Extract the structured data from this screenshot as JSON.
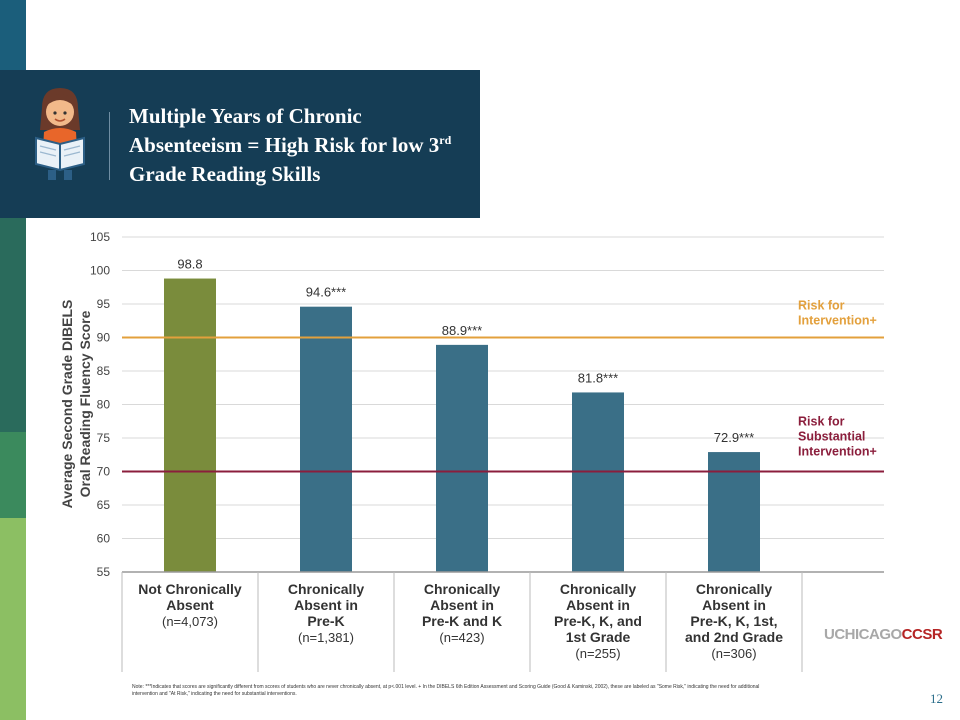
{
  "slide": {
    "title_main": "Multiple Years of Chronic Absenteeism = High Risk for low 3",
    "title_sup": "rd",
    "title_end": " Grade Reading Skills",
    "note": "Note: ***Indicates that scores are significantly different from scores of students who are never chronically absent, at p<.001 level. + In the DIBELS 6th Edition Assessment and Scoring Guide (Good & Kaminski, 2002), these are labeled as \"Some Risk,\" indicating the need for additional intervention and \"At Risk,\" indicating the need for substantial interventions.",
    "page_number": "12",
    "logo_part1": "UCHICAGO",
    "logo_part2": "CCSR"
  },
  "colors": {
    "stripes": [
      "#1b5e7b",
      "#1f5c6e",
      "#2a6b5c",
      "#3b8a5d",
      "#8cbf63"
    ],
    "title_band": "#153d55",
    "bar_first": "#7a8c3c",
    "bar_other": "#3a6f87",
    "line_intervention": "#e3a03c",
    "line_substantial": "#8b1e3c"
  },
  "chart_data": {
    "type": "bar",
    "ylabel": "Average Second Grade DIBELS Oral Reading Fluency Score",
    "ylim": [
      55,
      105
    ],
    "yticks": [
      55,
      60,
      65,
      70,
      75,
      80,
      85,
      90,
      95,
      100,
      105
    ],
    "grid": true,
    "categories": [
      {
        "lines": [
          "Not Chronically",
          "Absent"
        ],
        "n": "(n=4,073)"
      },
      {
        "lines": [
          "Chronically",
          "Absent in",
          "Pre-K"
        ],
        "n": "(n=1,381)"
      },
      {
        "lines": [
          "Chronically",
          "Absent in",
          "Pre-K and K"
        ],
        "n": "(n=423)"
      },
      {
        "lines": [
          "Chronically",
          "Absent in",
          "Pre-K, K, and",
          "1st Grade"
        ],
        "n": "(n=255)"
      },
      {
        "lines": [
          "Chronically",
          "Absent in",
          "Pre-K, K, 1st,",
          "and 2nd Grade"
        ],
        "n": "(n=306)"
      }
    ],
    "values": [
      98.8,
      94.6,
      88.9,
      81.8,
      72.9
    ],
    "data_labels": [
      "98.8",
      "94.6***",
      "88.9***",
      "81.8***",
      "72.9***"
    ],
    "reference_lines": [
      {
        "value": 90,
        "label_lines": [
          "Risk for",
          "Intervention+"
        ]
      },
      {
        "value": 70,
        "label_lines": [
          "Risk for",
          "Substantial",
          "Intervention+"
        ]
      }
    ]
  }
}
